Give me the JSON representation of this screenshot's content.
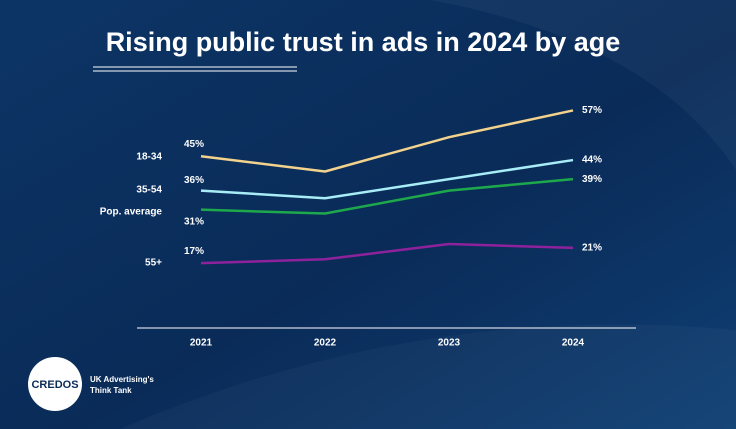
{
  "chart_data": {
    "type": "line",
    "title": "Rising public trust in ads in 2024 by age",
    "categories": [
      "2021",
      "2022",
      "2023",
      "2024"
    ],
    "series": [
      {
        "name": "18-34",
        "color": "#f2d28c",
        "values": [
          45,
          41,
          50,
          57
        ],
        "value_labels": [
          "45%",
          null,
          null,
          "57%"
        ]
      },
      {
        "name": "35-54",
        "color": "#a8ecf7",
        "values": [
          36,
          34,
          39,
          44
        ],
        "value_labels": [
          "36%",
          null,
          null,
          "44%"
        ]
      },
      {
        "name": "Pop. average",
        "color": "#1ea84c",
        "values": [
          31,
          30,
          36,
          39
        ],
        "value_labels": [
          "31%",
          null,
          null,
          "39%"
        ]
      },
      {
        "name": "55+",
        "color": "#8e229c",
        "values": [
          17,
          18,
          22,
          21
        ],
        "value_labels": [
          "17%",
          null,
          null,
          "21%"
        ]
      }
    ],
    "ylim": [
      0,
      60
    ]
  },
  "logo": "CREDOS",
  "tagline": [
    "UK Advertising's",
    "Think Tank"
  ]
}
